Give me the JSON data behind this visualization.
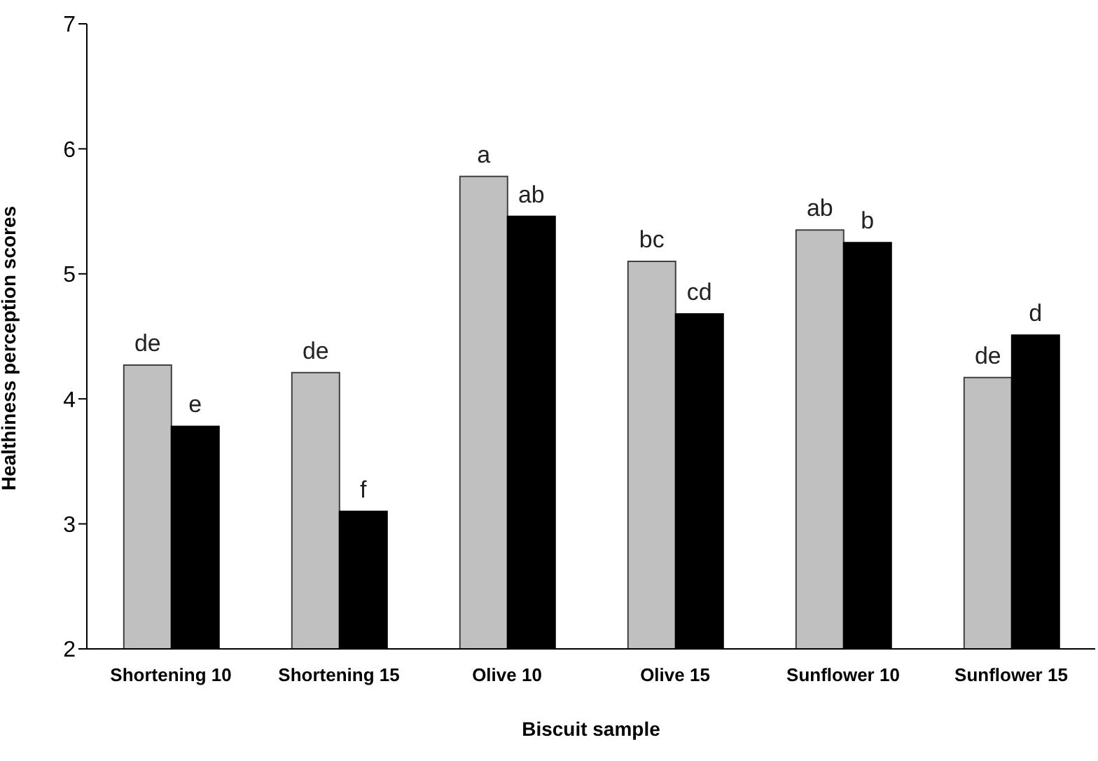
{
  "chart_data": {
    "type": "bar",
    "xlabel": "Biscuit sample",
    "ylabel": "Healthiness perception scores",
    "categories": [
      "Shortening 10",
      "Shortening 15",
      "Olive 10",
      "Olive 15",
      "Sunflower 10",
      "Sunflower 15"
    ],
    "series": [
      {
        "color": "#c0c0c0",
        "values": [
          4.27,
          4.21,
          5.78,
          5.1,
          5.35,
          4.17
        ],
        "value_labels": [
          "de",
          "de",
          "a",
          "bc",
          "ab",
          "de"
        ]
      },
      {
        "color": "#000000",
        "values": [
          3.78,
          3.1,
          5.46,
          4.68,
          5.25,
          4.51
        ],
        "value_labels": [
          "e",
          "f",
          "ab",
          "cd",
          "b",
          "d"
        ]
      }
    ],
    "ylim": [
      2,
      7
    ],
    "yticks": [
      2,
      3,
      4,
      5,
      6,
      7
    ],
    "grid": false,
    "legend": false
  }
}
